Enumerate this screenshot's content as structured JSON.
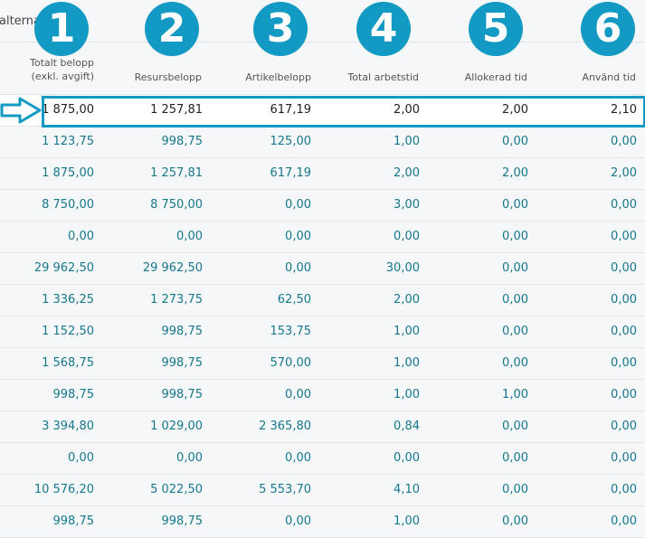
{
  "topbar": {
    "text": "alterna"
  },
  "headers": [
    {
      "line1": "Totalt belopp",
      "line2": "(exkl. avgift)"
    },
    {
      "line1": "Resursbelopp"
    },
    {
      "line1": "Artikelbelopp"
    },
    {
      "line1": "Total arbetstid"
    },
    {
      "line1": "Allokerad tid"
    },
    {
      "line1": "Använd tid"
    }
  ],
  "badges": [
    "1",
    "2",
    "3",
    "4",
    "5",
    "6"
  ],
  "rows": [
    [
      "1 875,00",
      "1 257,81",
      "617,19",
      "2,00",
      "2,00",
      "2,10"
    ],
    [
      "1 123,75",
      "998,75",
      "125,00",
      "1,00",
      "0,00",
      "0,00"
    ],
    [
      "1 875,00",
      "1 257,81",
      "617,19",
      "2,00",
      "2,00",
      "2,00"
    ],
    [
      "8 750,00",
      "8 750,00",
      "0,00",
      "3,00",
      "0,00",
      "0,00"
    ],
    [
      "0,00",
      "0,00",
      "0,00",
      "0,00",
      "0,00",
      "0,00"
    ],
    [
      "29 962,50",
      "29 962,50",
      "0,00",
      "30,00",
      "0,00",
      "0,00"
    ],
    [
      "1 336,25",
      "1 273,75",
      "62,50",
      "2,00",
      "0,00",
      "0,00"
    ],
    [
      "1 152,50",
      "998,75",
      "153,75",
      "1,00",
      "0,00",
      "0,00"
    ],
    [
      "1 568,75",
      "998,75",
      "570,00",
      "1,00",
      "0,00",
      "0,00"
    ],
    [
      "998,75",
      "998,75",
      "0,00",
      "1,00",
      "1,00",
      "0,00"
    ],
    [
      "3 394,80",
      "1 029,00",
      "2 365,80",
      "0,84",
      "0,00",
      "0,00"
    ],
    [
      "0,00",
      "0,00",
      "0,00",
      "0,00",
      "0,00",
      "0,00"
    ],
    [
      "10 576,20",
      "5 022,50",
      "5 553,70",
      "4,10",
      "0,00",
      "0,00"
    ],
    [
      "998,75",
      "998,75",
      "0,00",
      "1,00",
      "0,00",
      "0,00"
    ]
  ],
  "colors": {
    "accent": "#1299c4",
    "value_text": "#17778c"
  },
  "icons": {
    "row_pointer": "arrow-right-icon"
  }
}
